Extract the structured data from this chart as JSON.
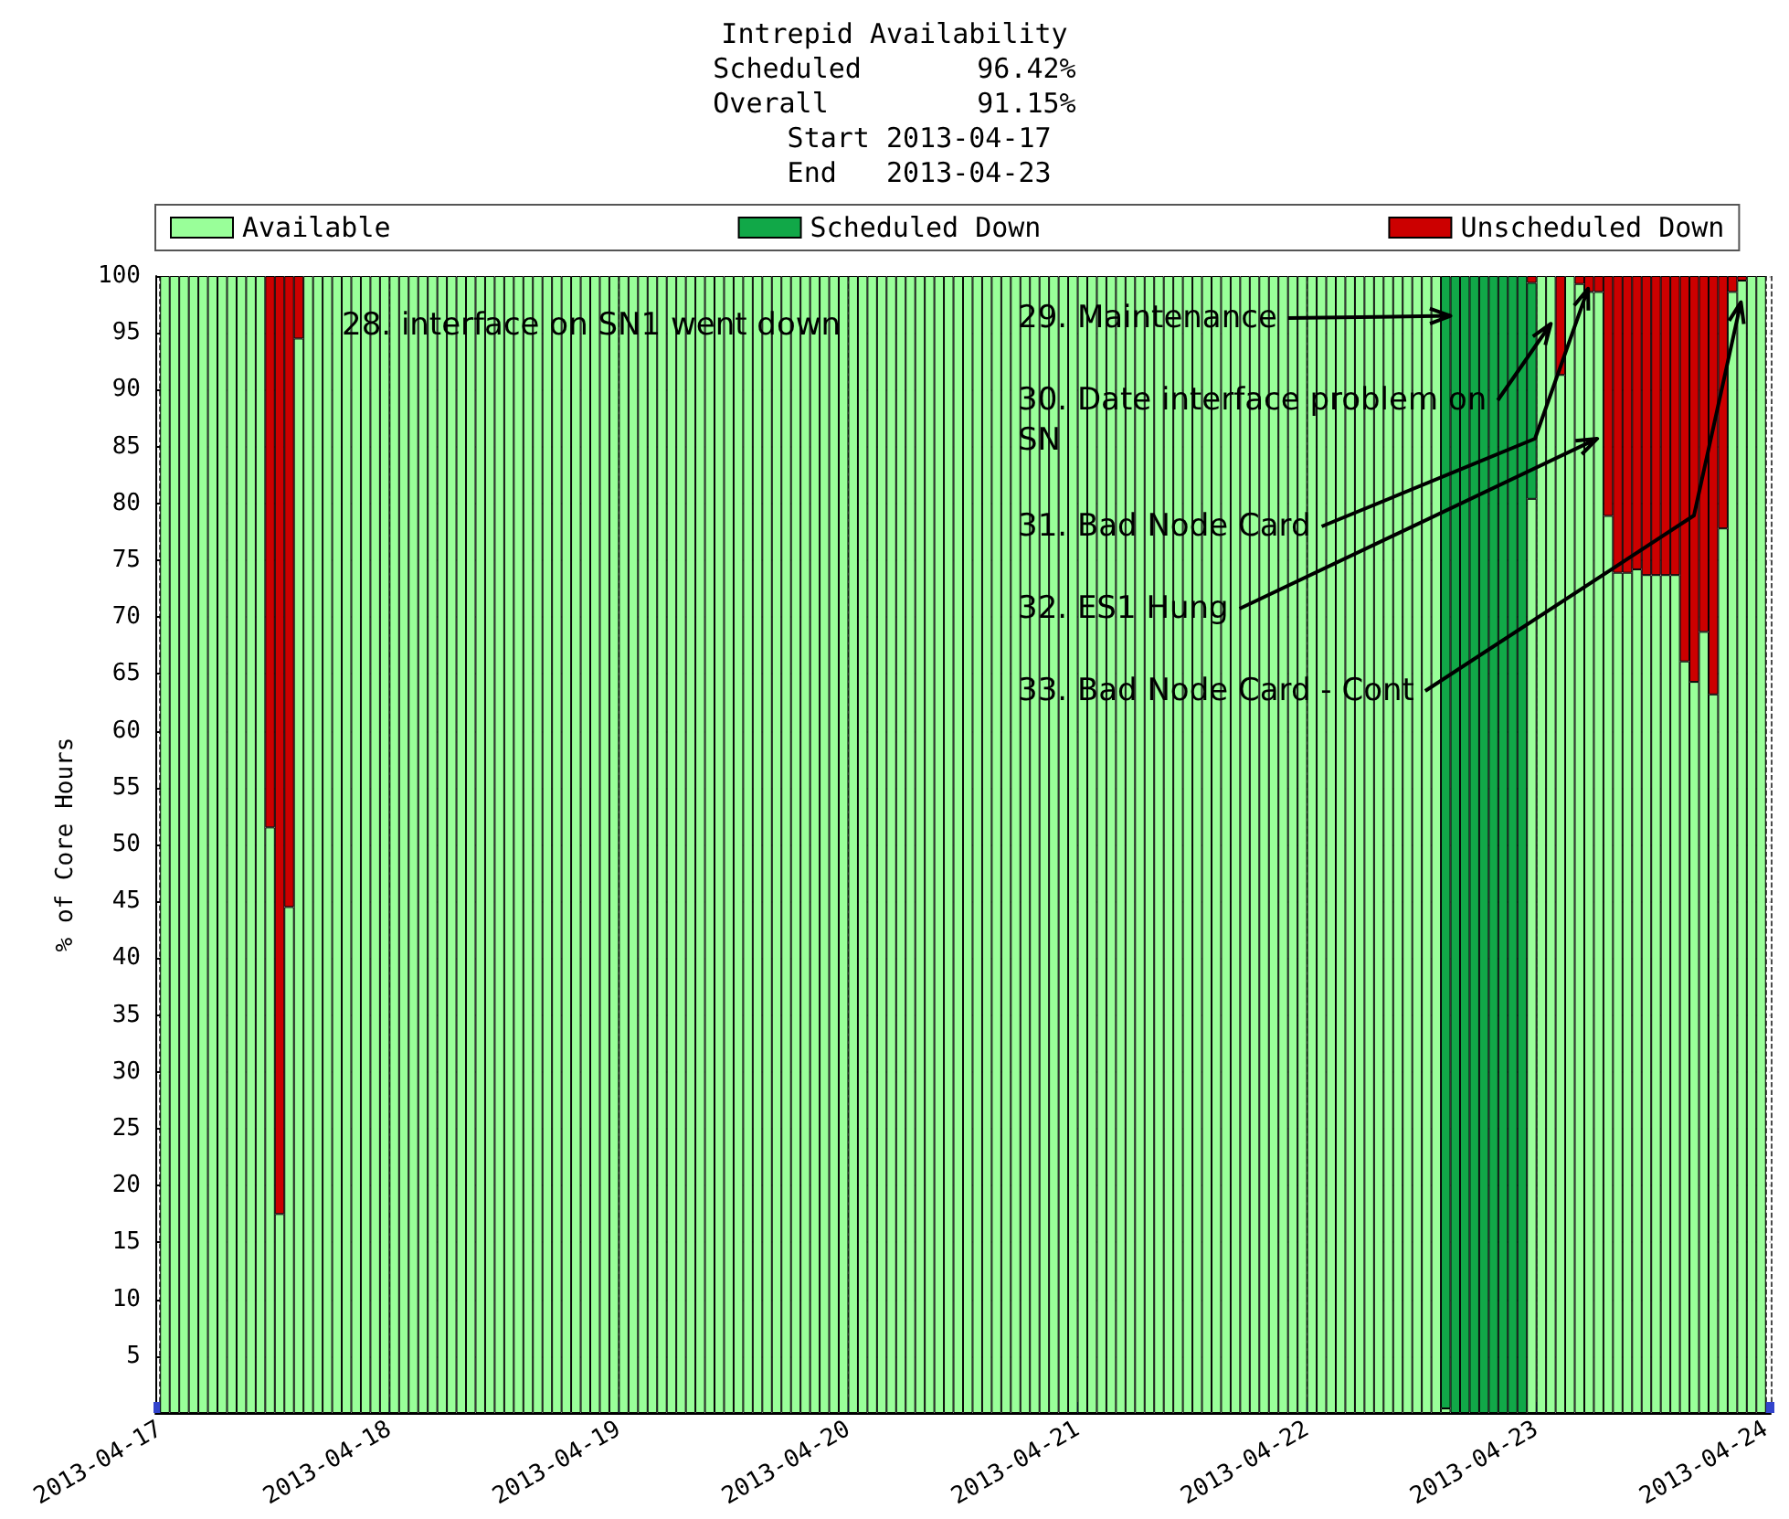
{
  "chart_data": {
    "type": "bar",
    "stacked": true,
    "title": "Intrepid Availability",
    "subtitle": "Scheduled       96.42%\nOverall         91.15%\n   Start 2013-04-17\n   End   2013-04-23",
    "ylabel": "% of Core Hours",
    "x": [
      "2013-04-17T00:30",
      "2013-04-17T01:30",
      "2013-04-17T02:30",
      "2013-04-17T03:30",
      "2013-04-17T04:30",
      "2013-04-17T05:30",
      "2013-04-17T06:30",
      "2013-04-17T07:30",
      "2013-04-17T08:30",
      "2013-04-17T09:30",
      "2013-04-17T10:30",
      "2013-04-17T11:30",
      "2013-04-17T12:30",
      "2013-04-17T13:30",
      "2013-04-17T14:30",
      "2013-04-17T15:30",
      "2013-04-17T16:30",
      "2013-04-17T17:30",
      "2013-04-17T18:30",
      "2013-04-17T19:30",
      "2013-04-17T20:30",
      "2013-04-17T21:30",
      "2013-04-17T22:30",
      "2013-04-17T23:30",
      "2013-04-18T00:30",
      "2013-04-18T01:30",
      "2013-04-18T02:30",
      "2013-04-18T03:30",
      "2013-04-18T04:30",
      "2013-04-18T05:30",
      "2013-04-18T06:30",
      "2013-04-18T07:30",
      "2013-04-18T08:30",
      "2013-04-18T09:30",
      "2013-04-18T10:30",
      "2013-04-18T11:30",
      "2013-04-18T12:30",
      "2013-04-18T13:30",
      "2013-04-18T14:30",
      "2013-04-18T15:30",
      "2013-04-18T16:30",
      "2013-04-18T17:30",
      "2013-04-18T18:30",
      "2013-04-18T19:30",
      "2013-04-18T20:30",
      "2013-04-18T21:30",
      "2013-04-18T22:30",
      "2013-04-18T23:30",
      "2013-04-19T00:30",
      "2013-04-19T01:30",
      "2013-04-19T02:30",
      "2013-04-19T03:30",
      "2013-04-19T04:30",
      "2013-04-19T05:30",
      "2013-04-19T06:30",
      "2013-04-19T07:30",
      "2013-04-19T08:30",
      "2013-04-19T09:30",
      "2013-04-19T10:30",
      "2013-04-19T11:30",
      "2013-04-19T12:30",
      "2013-04-19T13:30",
      "2013-04-19T14:30",
      "2013-04-19T15:30",
      "2013-04-19T16:30",
      "2013-04-19T17:30",
      "2013-04-19T18:30",
      "2013-04-19T19:30",
      "2013-04-19T20:30",
      "2013-04-19T21:30",
      "2013-04-19T22:30",
      "2013-04-19T23:30",
      "2013-04-20T00:30",
      "2013-04-20T01:30",
      "2013-04-20T02:30",
      "2013-04-20T03:30",
      "2013-04-20T04:30",
      "2013-04-20T05:30",
      "2013-04-20T06:30",
      "2013-04-20T07:30",
      "2013-04-20T08:30",
      "2013-04-20T09:30",
      "2013-04-20T10:30",
      "2013-04-20T11:30",
      "2013-04-20T12:30",
      "2013-04-20T13:30",
      "2013-04-20T14:30",
      "2013-04-20T15:30",
      "2013-04-20T16:30",
      "2013-04-20T17:30",
      "2013-04-20T18:30",
      "2013-04-20T19:30",
      "2013-04-20T20:30",
      "2013-04-20T21:30",
      "2013-04-20T22:30",
      "2013-04-20T23:30",
      "2013-04-21T00:30",
      "2013-04-21T01:30",
      "2013-04-21T02:30",
      "2013-04-21T03:30",
      "2013-04-21T04:30",
      "2013-04-21T05:30",
      "2013-04-21T06:30",
      "2013-04-21T07:30",
      "2013-04-21T08:30",
      "2013-04-21T09:30",
      "2013-04-21T10:30",
      "2013-04-21T11:30",
      "2013-04-21T12:30",
      "2013-04-21T13:30",
      "2013-04-21T14:30",
      "2013-04-21T15:30",
      "2013-04-21T16:30",
      "2013-04-21T17:30",
      "2013-04-21T18:30",
      "2013-04-21T19:30",
      "2013-04-21T20:30",
      "2013-04-21T21:30",
      "2013-04-21T22:30",
      "2013-04-21T23:30",
      "2013-04-22T00:30",
      "2013-04-22T01:30",
      "2013-04-22T02:30",
      "2013-04-22T03:30",
      "2013-04-22T04:30",
      "2013-04-22T05:30",
      "2013-04-22T06:30",
      "2013-04-22T07:30",
      "2013-04-22T08:30",
      "2013-04-22T09:30",
      "2013-04-22T10:30",
      "2013-04-22T11:30",
      "2013-04-22T12:30",
      "2013-04-22T13:30",
      "2013-04-22T14:30",
      "2013-04-22T15:30",
      "2013-04-22T16:30",
      "2013-04-22T17:30",
      "2013-04-22T18:30",
      "2013-04-22T19:30",
      "2013-04-22T20:30",
      "2013-04-22T21:30",
      "2013-04-22T22:30",
      "2013-04-22T23:30",
      "2013-04-23T00:30",
      "2013-04-23T01:30",
      "2013-04-23T02:30",
      "2013-04-23T03:30",
      "2013-04-23T04:30",
      "2013-04-23T05:30",
      "2013-04-23T06:30",
      "2013-04-23T07:30",
      "2013-04-23T08:30",
      "2013-04-23T09:30",
      "2013-04-23T10:30",
      "2013-04-23T11:30",
      "2013-04-23T12:30",
      "2013-04-23T13:30",
      "2013-04-23T14:30",
      "2013-04-23T15:30",
      "2013-04-23T16:30",
      "2013-04-23T17:30",
      "2013-04-23T18:30",
      "2013-04-23T19:30",
      "2013-04-23T20:30",
      "2013-04-23T21:30",
      "2013-04-23T22:30",
      "2013-04-23T23:30"
    ],
    "series": [
      {
        "name": "Available",
        "color": "#99ff99",
        "values": [
          100,
          100,
          100,
          100,
          100,
          100,
          100,
          100,
          100,
          100,
          100,
          51.5,
          17.5,
          44.5,
          94.5,
          100,
          100,
          100,
          100,
          100,
          100,
          100,
          100,
          100,
          100,
          100,
          100,
          100,
          100,
          100,
          100,
          100,
          100,
          100,
          100,
          100,
          100,
          100,
          100,
          100,
          100,
          100,
          100,
          100,
          100,
          100,
          100,
          100,
          100,
          100,
          100,
          100,
          100,
          100,
          100,
          100,
          100,
          100,
          100,
          100,
          100,
          100,
          100,
          100,
          100,
          100,
          100,
          100,
          100,
          100,
          100,
          100,
          100,
          100,
          100,
          100,
          100,
          100,
          100,
          100,
          100,
          100,
          100,
          100,
          100,
          100,
          100,
          100,
          100,
          100,
          100,
          100,
          100,
          100,
          100,
          100,
          100,
          100,
          100,
          100,
          100,
          100,
          100,
          100,
          100,
          100,
          100,
          100,
          100,
          100,
          100,
          100,
          100,
          100,
          100,
          100,
          100,
          100,
          100,
          100,
          100,
          100,
          100,
          100,
          100,
          100,
          100,
          100,
          100,
          100,
          100,
          100,
          100,
          100,
          0.4,
          0,
          0,
          0,
          0,
          0,
          0,
          0,
          0,
          80.4,
          100,
          100,
          91.3,
          100,
          99.3,
          98.6,
          98.6,
          78.9,
          73.9,
          73.9,
          74.2,
          73.7,
          73.7,
          73.7,
          73.7,
          66.1,
          64.3,
          68.7,
          63.2,
          77.8,
          98.6,
          99.6,
          100,
          100
        ]
      },
      {
        "name": "Scheduled Down",
        "color": "#11a848",
        "values": [
          0,
          0,
          0,
          0,
          0,
          0,
          0,
          0,
          0,
          0,
          0,
          0,
          0,
          0,
          0,
          0,
          0,
          0,
          0,
          0,
          0,
          0,
          0,
          0,
          0,
          0,
          0,
          0,
          0,
          0,
          0,
          0,
          0,
          0,
          0,
          0,
          0,
          0,
          0,
          0,
          0,
          0,
          0,
          0,
          0,
          0,
          0,
          0,
          0,
          0,
          0,
          0,
          0,
          0,
          0,
          0,
          0,
          0,
          0,
          0,
          0,
          0,
          0,
          0,
          0,
          0,
          0,
          0,
          0,
          0,
          0,
          0,
          0,
          0,
          0,
          0,
          0,
          0,
          0,
          0,
          0,
          0,
          0,
          0,
          0,
          0,
          0,
          0,
          0,
          0,
          0,
          0,
          0,
          0,
          0,
          0,
          0,
          0,
          0,
          0,
          0,
          0,
          0,
          0,
          0,
          0,
          0,
          0,
          0,
          0,
          0,
          0,
          0,
          0,
          0,
          0,
          0,
          0,
          0,
          0,
          0,
          0,
          0,
          0,
          0,
          0,
          0,
          0,
          0,
          0,
          0,
          0,
          0,
          0,
          99.6,
          100,
          100,
          100,
          100,
          100,
          100,
          100,
          100,
          19.0,
          0,
          0,
          0,
          0,
          0,
          0,
          0,
          0,
          0,
          0,
          0,
          0,
          0,
          0,
          0,
          0,
          0,
          0,
          0,
          0,
          0,
          0,
          0,
          0
        ]
      },
      {
        "name": "Unscheduled Down",
        "color": "#cc0000",
        "values": [
          0,
          0,
          0,
          0,
          0,
          0,
          0,
          0,
          0,
          0,
          0,
          48.5,
          82.5,
          55.5,
          5.5,
          0,
          0,
          0,
          0,
          0,
          0,
          0,
          0,
          0,
          0,
          0,
          0,
          0,
          0,
          0,
          0,
          0,
          0,
          0,
          0,
          0,
          0,
          0,
          0,
          0,
          0,
          0,
          0,
          0,
          0,
          0,
          0,
          0,
          0,
          0,
          0,
          0,
          0,
          0,
          0,
          0,
          0,
          0,
          0,
          0,
          0,
          0,
          0,
          0,
          0,
          0,
          0,
          0,
          0,
          0,
          0,
          0,
          0,
          0,
          0,
          0,
          0,
          0,
          0,
          0,
          0,
          0,
          0,
          0,
          0,
          0,
          0,
          0,
          0,
          0,
          0,
          0,
          0,
          0,
          0,
          0,
          0,
          0,
          0,
          0,
          0,
          0,
          0,
          0,
          0,
          0,
          0,
          0,
          0,
          0,
          0,
          0,
          0,
          0,
          0,
          0,
          0,
          0,
          0,
          0,
          0,
          0,
          0,
          0,
          0,
          0,
          0,
          0,
          0,
          0,
          0,
          0,
          0,
          0,
          0,
          0,
          0,
          0,
          0,
          0,
          0,
          0,
          0,
          0.6,
          0,
          0,
          8.7,
          0,
          0.7,
          1.4,
          1.4,
          21.1,
          26.1,
          26.1,
          25.8,
          26.3,
          26.3,
          26.3,
          26.3,
          33.9,
          35.7,
          31.3,
          36.8,
          22.2,
          1.4,
          0.4,
          0,
          0
        ]
      }
    ],
    "xlim": [
      "2013-04-17",
      "2013-04-24"
    ],
    "xticks": [
      "2013-04-17",
      "2013-04-18",
      "2013-04-19",
      "2013-04-20",
      "2013-04-21",
      "2013-04-22",
      "2013-04-23",
      "2013-04-24"
    ],
    "ylim": [
      0,
      100
    ],
    "yticks": [
      5,
      10,
      15,
      20,
      25,
      30,
      35,
      40,
      45,
      50,
      55,
      60,
      65,
      70,
      75,
      80,
      85,
      90,
      95,
      100
    ],
    "grid": true,
    "legend": "top",
    "annotations": [
      "28. interface on SN1 went down",
      {
        "text": "29. Maintenance",
        "x": "2013-04-22T15:00",
        "y": 96.5
      },
      {
        "text": "30. Date interface problem on SN",
        "x": "2013-04-23T01:30",
        "y": 95.8
      },
      {
        "text": "31. Bad Node Card",
        "x": "2013-04-23T05:24",
        "y": 98.9
      },
      {
        "text": "32. ES1 Hung",
        "x": "2013-04-23T06:21",
        "y": 85.7
      },
      {
        "text": "33. Bad Node Card - Cont",
        "x": "2013-04-23T21:23",
        "y": 97.7
      }
    ]
  }
}
